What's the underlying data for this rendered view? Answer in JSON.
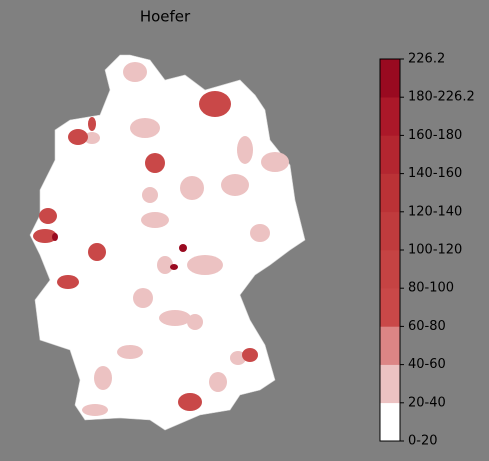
{
  "title": "Hoefer",
  "colorbar": {
    "labels": [
      "0-20",
      "20-40",
      "40-60",
      "60-80",
      "80-100",
      "100-120",
      "120-140",
      "140-160",
      "160-180",
      "180-226.2",
      "226.2"
    ],
    "colors": [
      "#ffffff",
      "#ecc2c2",
      "#dc8585",
      "#c94848",
      "#c54343",
      "#c03b3d",
      "#bb3236",
      "#b42630",
      "#ab1829",
      "#990a20"
    ]
  }
}
